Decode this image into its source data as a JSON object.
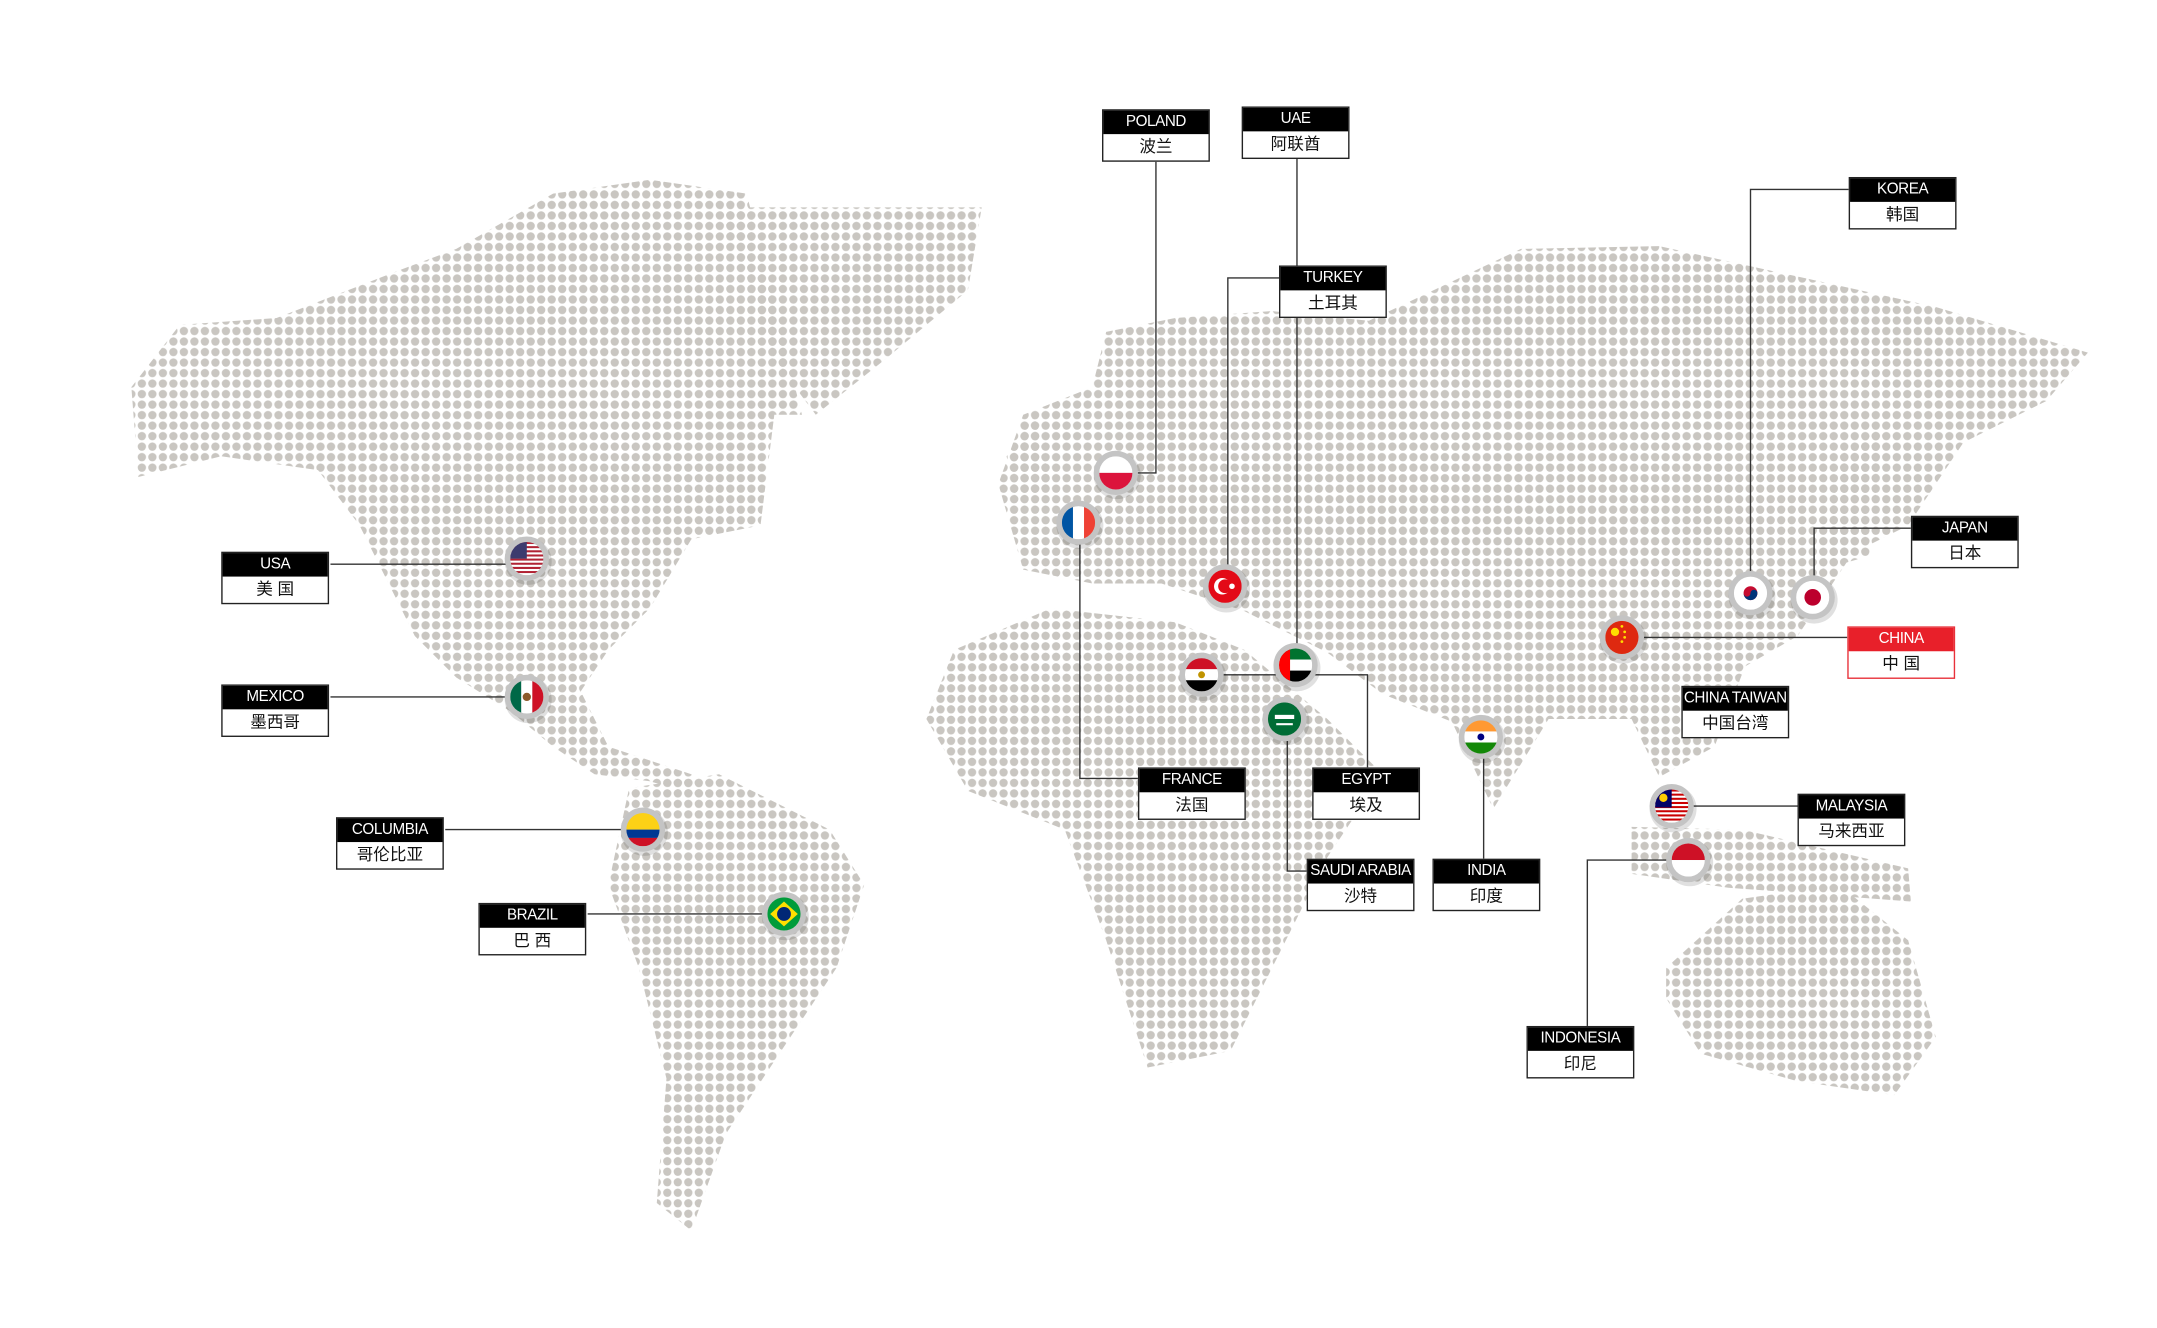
{
  "colors": {
    "dots": "#c9c6c1",
    "label_header": "#000000",
    "highlight": "#e8202a",
    "marker_ring": "#c4c4c4"
  },
  "countries": [
    {
      "id": "poland",
      "en": "POLAND",
      "zh": "波兰",
      "flag": "poland-flag-icon"
    },
    {
      "id": "uae",
      "en": "UAE",
      "zh": "阿联酋",
      "flag": "uae-flag-icon"
    },
    {
      "id": "turkey",
      "en": "TURKEY",
      "zh": "土耳其",
      "flag": "turkey-flag-icon"
    },
    {
      "id": "korea",
      "en": "KOREA",
      "zh": "韩国",
      "flag": "korea-flag-icon"
    },
    {
      "id": "japan",
      "en": "JAPAN",
      "zh": "日本",
      "flag": "japan-flag-icon"
    },
    {
      "id": "china",
      "en": "CHINA",
      "zh": "中 国",
      "flag": "china-flag-icon",
      "highlighted": true
    },
    {
      "id": "china-taiwan",
      "en": "CHINA TAIWAN",
      "zh": "中国台湾",
      "flag": ""
    },
    {
      "id": "malaysia",
      "en": "MALAYSIA",
      "zh": "马来西亚",
      "flag": "malaysia-flag-icon"
    },
    {
      "id": "indonesia",
      "en": "INDONESIA",
      "zh": "印尼",
      "flag": "indonesia-flag-icon"
    },
    {
      "id": "india",
      "en": "INDIA",
      "zh": "印度",
      "flag": "india-flag-icon"
    },
    {
      "id": "saudi-arabia",
      "en": "SAUDI ARABIA",
      "zh": "沙特",
      "flag": "saudi-arabia-flag-icon"
    },
    {
      "id": "egypt",
      "en": "EGYPT",
      "zh": "埃及",
      "flag": "egypt-flag-icon"
    },
    {
      "id": "france",
      "en": "FRANCE",
      "zh": "法国",
      "flag": "france-flag-icon"
    },
    {
      "id": "usa",
      "en": "USA",
      "zh": "美 国",
      "flag": "usa-flag-icon"
    },
    {
      "id": "mexico",
      "en": "MEXICO",
      "zh": "墨西哥",
      "flag": "mexico-flag-icon"
    },
    {
      "id": "columbia",
      "en": "COLUMBIA",
      "zh": "哥伦比亚",
      "flag": "colombia-flag-icon"
    },
    {
      "id": "brazil",
      "en": "BRAZIL",
      "zh": "巴 西",
      "flag": "brazil-flag-icon"
    }
  ]
}
